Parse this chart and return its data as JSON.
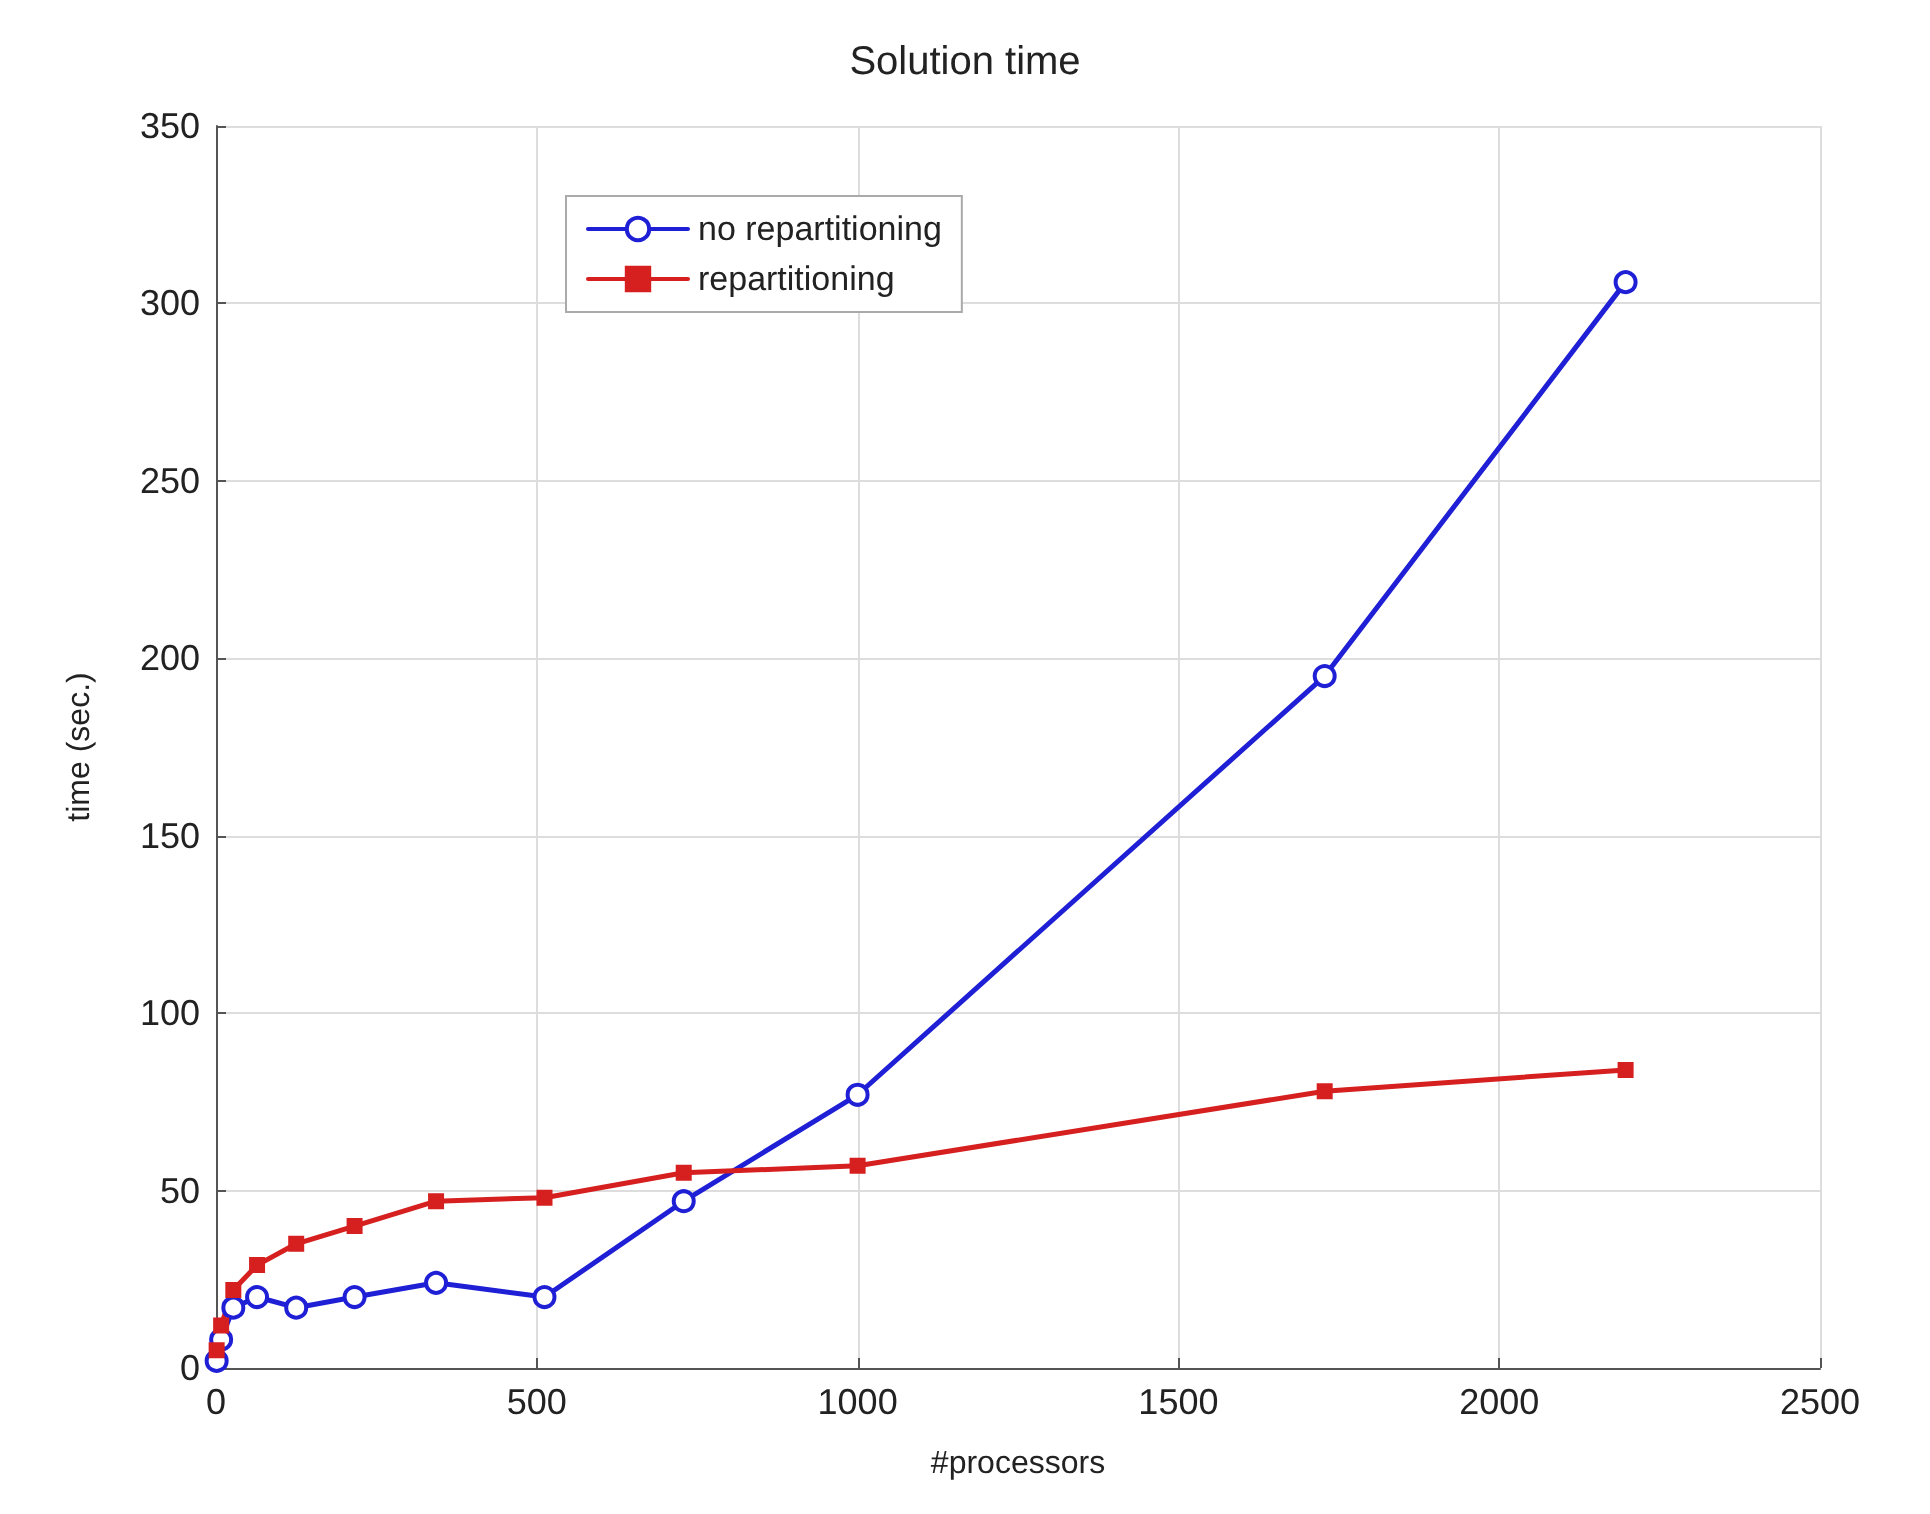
{
  "chart_data": {
    "type": "line",
    "title": "Solution time",
    "xlabel": "#processors",
    "ylabel": "time (sec.)",
    "xlim": [
      0,
      2500
    ],
    "xticks": [
      0,
      500,
      1000,
      1500,
      2000,
      2500
    ],
    "ylim": [
      0,
      350
    ],
    "yticks": [
      0,
      50,
      100,
      150,
      200,
      250,
      300,
      350
    ],
    "grid": true,
    "legend": "top left",
    "line_style": "solid",
    "series": [
      {
        "name": "no repartitioning",
        "color": "#1f1fd6",
        "marker": "circle",
        "x": [
          1,
          8,
          27,
          64,
          125,
          216,
          343,
          512,
          729,
          1000,
          1728,
          2197
        ],
        "values": [
          2,
          8,
          17,
          20,
          17,
          20,
          24,
          20,
          47,
          77,
          195,
          306
        ]
      },
      {
        "name": "repartitioning",
        "color": "#d61f1f",
        "marker": "square",
        "x": [
          1,
          8,
          27,
          64,
          125,
          216,
          343,
          512,
          729,
          1000,
          1728,
          2197
        ],
        "values": [
          5,
          12,
          22,
          29,
          35,
          40,
          47,
          48,
          55,
          57,
          78,
          84
        ]
      }
    ]
  }
}
